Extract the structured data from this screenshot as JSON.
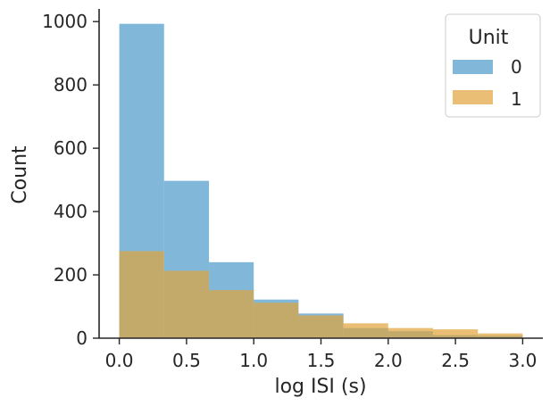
{
  "chart_data": {
    "type": "bar",
    "subtype": "histogram-overlay",
    "xlabel": "log ISI (s)",
    "ylabel": "Count",
    "xlim": [
      -0.15,
      3.15
    ],
    "ylim": [
      0,
      1040
    ],
    "x_ticks": [
      "0.0",
      "0.5",
      "1.0",
      "1.5",
      "2.0",
      "2.5",
      "3.0"
    ],
    "y_ticks": [
      "0",
      "200",
      "400",
      "600",
      "800",
      "1000"
    ],
    "bin_edges": [
      0.0,
      0.333,
      0.667,
      1.0,
      1.333,
      1.667,
      2.0,
      2.333,
      2.667,
      3.0
    ],
    "grid": false,
    "legend": {
      "title": "Unit",
      "placement": "top-right"
    },
    "series": [
      {
        "name": "0",
        "color": "#4c9ac9",
        "values": [
          993,
          497,
          240,
          122,
          78,
          32,
          22,
          10,
          8
        ]
      },
      {
        "name": "1",
        "color": "#e1a43a",
        "values": [
          275,
          213,
          152,
          112,
          72,
          47,
          32,
          28,
          15
        ]
      }
    ]
  }
}
